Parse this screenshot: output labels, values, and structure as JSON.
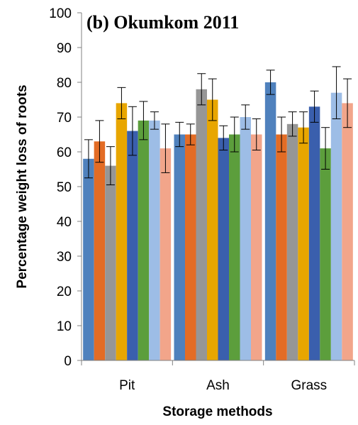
{
  "chart_data": {
    "type": "bar",
    "title": "(b) Okumkom 2011",
    "xlabel": "Storage methods",
    "ylabel": "Percentage weight loss of roots",
    "ylim": [
      0,
      100
    ],
    "yticks": [
      0,
      10,
      20,
      30,
      40,
      50,
      60,
      70,
      80,
      90,
      100
    ],
    "grid": false,
    "legend": "none",
    "categories": [
      "Pit",
      "Ash",
      "Grass"
    ],
    "series": [
      {
        "color": "#4f81bd",
        "values": [
          58,
          65,
          80
        ],
        "errors": [
          5.5,
          3.5,
          3.5
        ]
      },
      {
        "color": "#e36c25",
        "values": [
          63,
          65,
          65
        ],
        "errors": [
          6,
          3,
          5
        ]
      },
      {
        "color": "#969696",
        "values": [
          56,
          78,
          68
        ],
        "errors": [
          5.5,
          4.5,
          3.5
        ]
      },
      {
        "color": "#e8a600",
        "values": [
          74,
          75,
          67
        ],
        "errors": [
          4.5,
          6,
          4.5
        ]
      },
      {
        "color": "#3a5fad",
        "values": [
          66,
          64,
          73
        ],
        "errors": [
          7,
          3.5,
          4.5
        ]
      },
      {
        "color": "#5c9e3c",
        "values": [
          69,
          65,
          61
        ],
        "errors": [
          5.5,
          5,
          6
        ]
      },
      {
        "color": "#9dbde6",
        "values": [
          69,
          70,
          77
        ],
        "errors": [
          2.5,
          3.5,
          7.5
        ]
      },
      {
        "color": "#f2a58a",
        "values": [
          61,
          65,
          74
        ],
        "errors": [
          7,
          4.5,
          7
        ]
      }
    ]
  }
}
